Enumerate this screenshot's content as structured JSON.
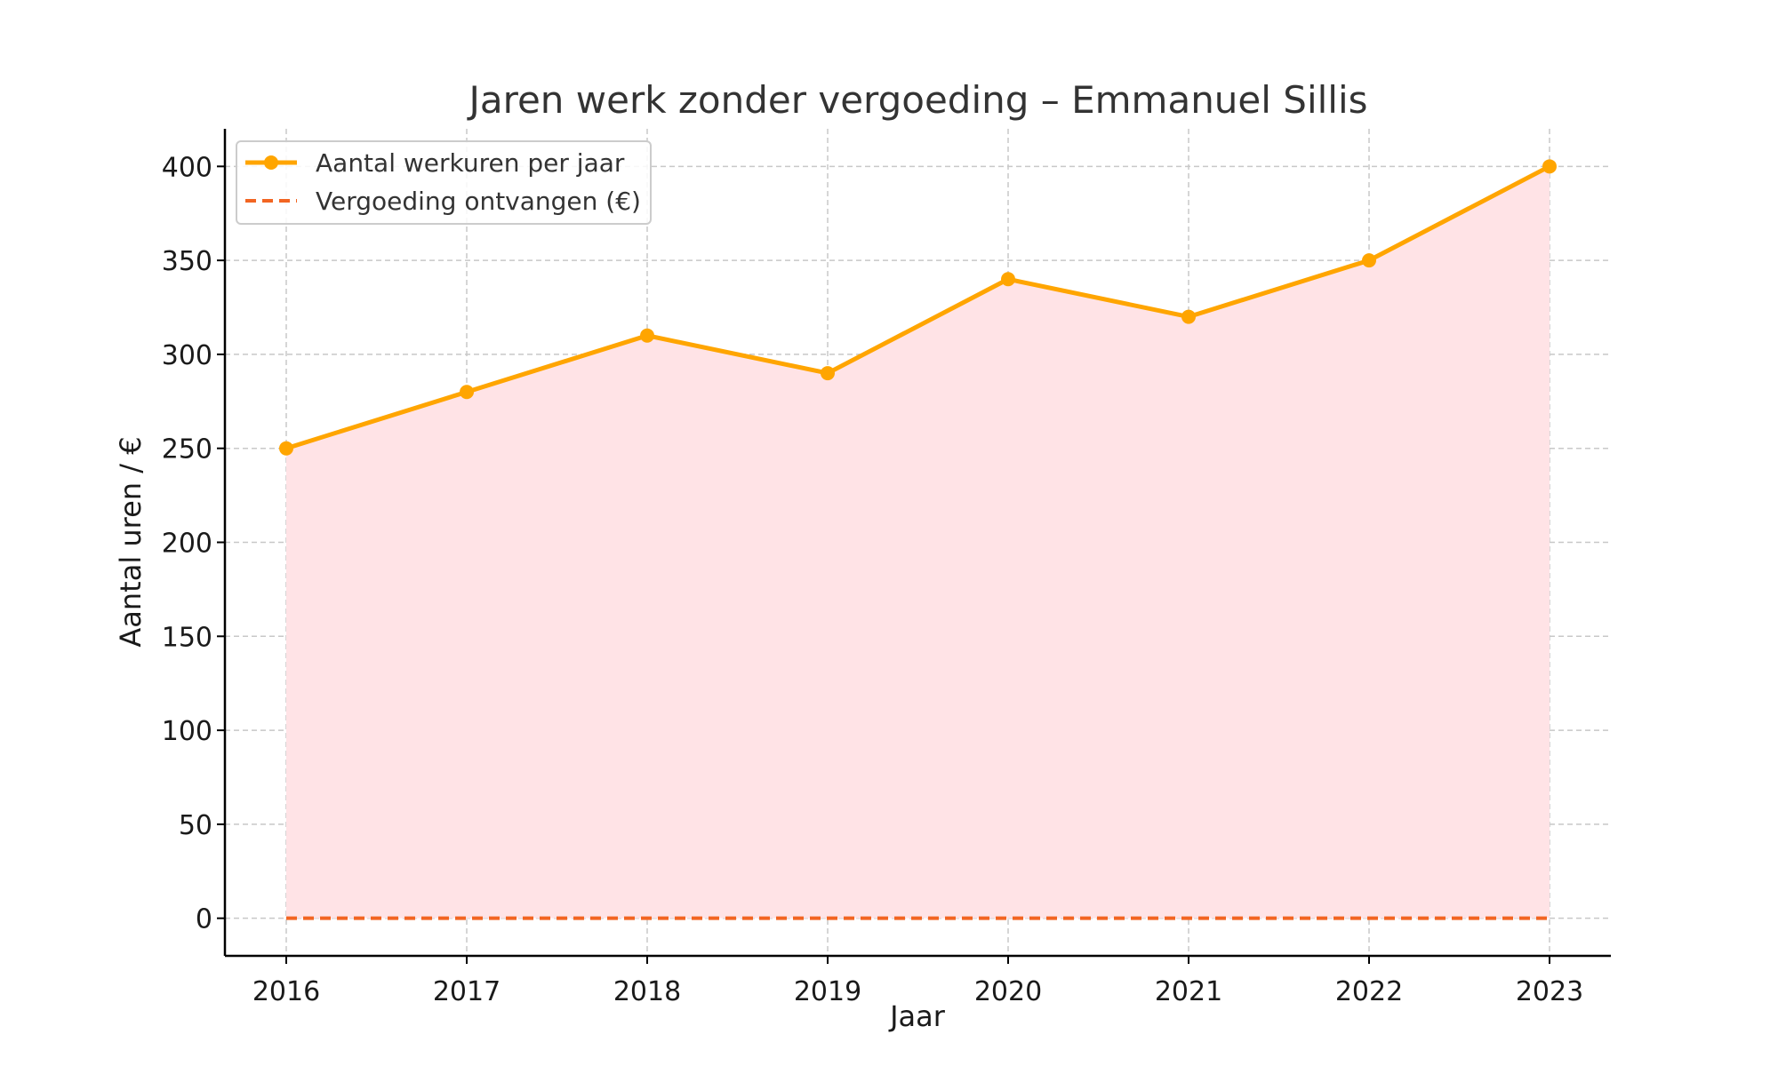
{
  "chart_data": {
    "type": "line",
    "title": "Jaren werk zonder vergoeding – Emmanuel Sillis",
    "xlabel": "Jaar",
    "ylabel": "Aantal uren / €",
    "categories": [
      "2016",
      "2017",
      "2018",
      "2019",
      "2020",
      "2021",
      "2022",
      "2023"
    ],
    "yticks": [
      0,
      50,
      100,
      150,
      200,
      250,
      300,
      350,
      400
    ],
    "ylim": [
      -20,
      420
    ],
    "grid": true,
    "legend_position": "top-left",
    "series": [
      {
        "name": "Aantal werkuren per jaar",
        "values": [
          250,
          280,
          310,
          290,
          340,
          320,
          350,
          400
        ],
        "color": "#FFA500",
        "style": "solid-with-markers",
        "fill": "#FFE3E6"
      },
      {
        "name": "Vergoeding ontvangen (€)",
        "values": [
          0,
          0,
          0,
          0,
          0,
          0,
          0,
          0
        ],
        "color": "#F26522",
        "style": "dashed"
      }
    ]
  }
}
